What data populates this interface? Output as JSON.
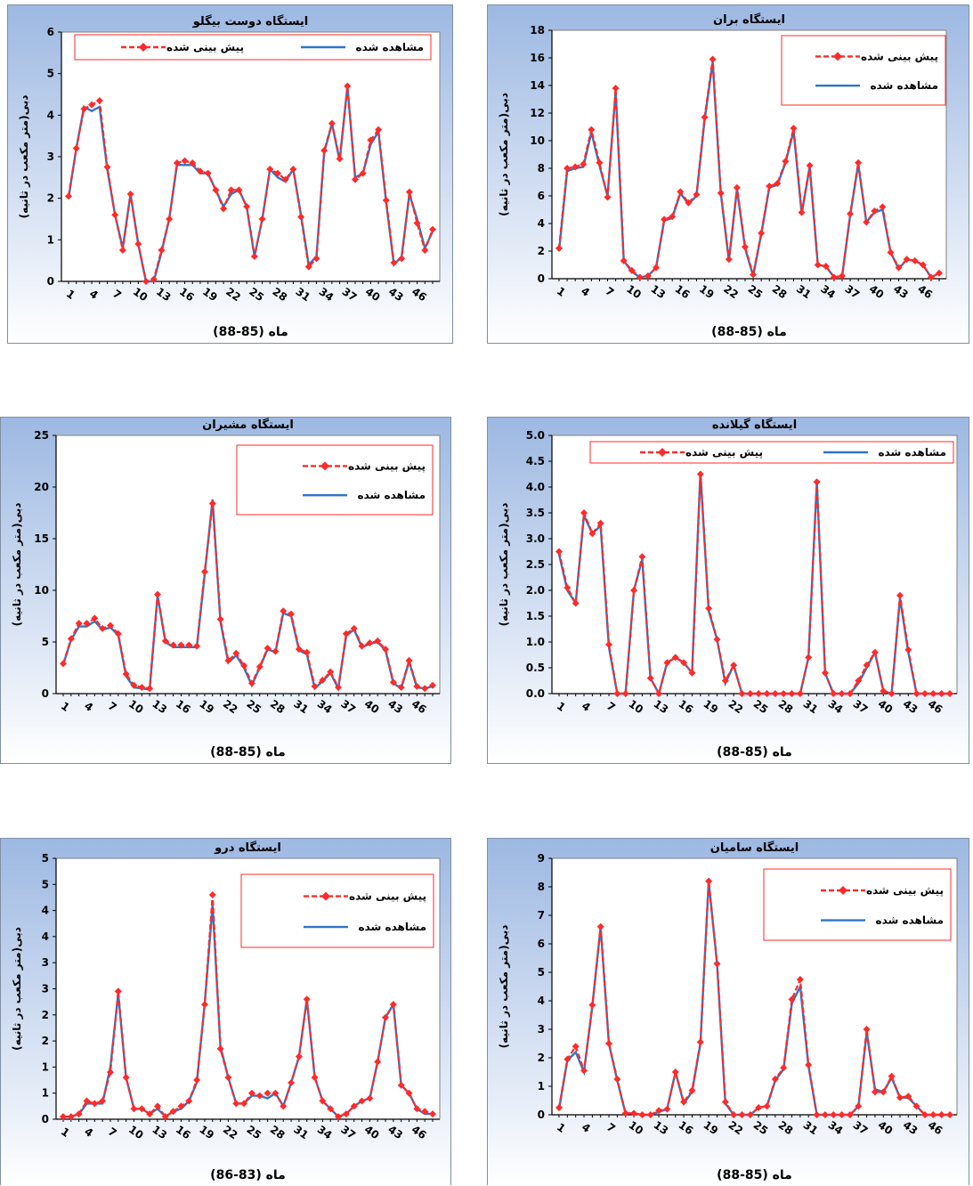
{
  "chart_data": [
    {
      "type": "line",
      "title": "ایستگاه دوست بیگلو",
      "xlabel": "ماه (85-88)",
      "ylabel": "دبی(متر مکعب در ثانیه)",
      "ylim": [
        0,
        6
      ],
      "ystep": 1,
      "ydecimals": 0,
      "xticks": [
        1,
        4,
        7,
        10,
        13,
        16,
        19,
        22,
        25,
        28,
        31,
        34,
        37,
        40,
        43,
        46
      ],
      "legend": "top-horizontal",
      "legend_items": [
        "مشاهده شده",
        "پیش بینی شده"
      ],
      "series": [
        {
          "name": "مشاهده شده",
          "color": "#2e75c9",
          "values": [
            2.0,
            3.2,
            4.2,
            4.1,
            4.2,
            2.7,
            1.6,
            0.8,
            2.1,
            0.9,
            0.0,
            0.0,
            0.7,
            1.5,
            2.8,
            2.8,
            2.8,
            2.6,
            2.6,
            2.2,
            1.8,
            2.1,
            2.2,
            1.8,
            0.6,
            1.5,
            2.7,
            2.5,
            2.4,
            2.7,
            1.6,
            0.4,
            0.6,
            3.1,
            3.8,
            2.9,
            4.7,
            2.5,
            2.6,
            3.3,
            3.6,
            1.9,
            0.4,
            0.6,
            2.1,
            1.5,
            0.8,
            1.2
          ]
        },
        {
          "name": "پیش بینی شده",
          "color": "#ff2a2a",
          "values": [
            2.05,
            3.2,
            4.15,
            4.25,
            4.35,
            2.75,
            1.6,
            0.75,
            2.1,
            0.9,
            0.0,
            0.05,
            0.75,
            1.5,
            2.85,
            2.9,
            2.85,
            2.65,
            2.6,
            2.2,
            1.75,
            2.2,
            2.2,
            1.8,
            0.6,
            1.5,
            2.7,
            2.6,
            2.45,
            2.7,
            1.55,
            0.35,
            0.55,
            3.15,
            3.8,
            2.95,
            4.7,
            2.45,
            2.6,
            3.4,
            3.65,
            1.95,
            0.45,
            0.55,
            2.15,
            1.4,
            0.75,
            1.25
          ]
        }
      ]
    },
    {
      "type": "line",
      "title": "ایستگاه بران",
      "xlabel": "ماه (85-88)",
      "ylabel": "دبی(متر مکعب در ثانیه)",
      "ylim": [
        0,
        18
      ],
      "ystep": 2,
      "ydecimals": 0,
      "xticks": [
        1,
        4,
        7,
        10,
        13,
        16,
        19,
        22,
        25,
        28,
        31,
        34,
        37,
        40,
        43,
        46
      ],
      "legend": "top-right",
      "legend_items": [
        "پیش بینی شده",
        "مشاهده شده"
      ],
      "series": [
        {
          "name": "مشاهده شده",
          "color": "#2e75c9",
          "values": [
            2.0,
            7.8,
            8.0,
            8.1,
            10.6,
            8.2,
            6.0,
            13.6,
            1.3,
            0.5,
            0.1,
            0.2,
            0.8,
            4.2,
            4.4,
            6.2,
            5.4,
            6.0,
            11.5,
            15.7,
            6.2,
            1.3,
            6.5,
            2.2,
            0.2,
            3.2,
            6.6,
            6.8,
            8.4,
            10.7,
            4.7,
            8.1,
            1.0,
            0.9,
            0.1,
            0.2,
            4.6,
            8.3,
            4.1,
            4.8,
            5.0,
            1.9,
            0.7,
            1.4,
            1.3,
            1.0,
            0.1,
            0.4
          ]
        },
        {
          "name": "پیش بینی شده",
          "color": "#ff2a2a",
          "values": [
            2.2,
            8.0,
            8.1,
            8.3,
            10.8,
            8.4,
            5.9,
            13.8,
            1.3,
            0.6,
            0.1,
            0.2,
            0.8,
            4.3,
            4.5,
            6.3,
            5.5,
            6.1,
            11.7,
            15.9,
            6.2,
            1.4,
            6.6,
            2.3,
            0.3,
            3.3,
            6.7,
            6.9,
            8.5,
            10.9,
            4.8,
            8.2,
            1.0,
            0.9,
            0.1,
            0.2,
            4.7,
            8.4,
            4.1,
            4.9,
            5.2,
            1.9,
            0.8,
            1.4,
            1.3,
            1.0,
            0.1,
            0.4
          ]
        }
      ]
    },
    {
      "type": "line",
      "title": "ایستگاه مشیران",
      "xlabel": "ماه (85-88)",
      "ylabel": "دبی(متر مکعب در ثانیه)",
      "ylim": [
        0,
        25
      ],
      "ystep": 5,
      "ydecimals": 0,
      "xticks": [
        1,
        4,
        7,
        10,
        13,
        16,
        19,
        22,
        25,
        28,
        31,
        34,
        37,
        40,
        43,
        46
      ],
      "legend": "top-right",
      "legend_items": [
        "پیش بینی شده",
        "مشاهده شده"
      ],
      "series": [
        {
          "name": "مشاهده شده",
          "color": "#2e75c9",
          "values": [
            2.8,
            5.2,
            6.5,
            6.5,
            7.0,
            6.2,
            6.4,
            5.7,
            1.7,
            0.6,
            0.5,
            0.4,
            9.5,
            5.0,
            4.5,
            4.5,
            4.5,
            4.5,
            11.5,
            18.8,
            7.0,
            3.0,
            3.7,
            2.5,
            0.8,
            2.5,
            4.3,
            4.0,
            7.8,
            7.5,
            4.2,
            3.8,
            0.5,
            1.2,
            2.0,
            0.5,
            5.6,
            6.2,
            4.5,
            4.8,
            5.0,
            4.2,
            1.0,
            0.5,
            3.1,
            0.6,
            0.5,
            0.7
          ]
        },
        {
          "name": "پیش بینی شده",
          "color": "#ff2a2a",
          "values": [
            2.9,
            5.3,
            6.8,
            6.8,
            7.3,
            6.3,
            6.6,
            5.8,
            1.9,
            0.8,
            0.6,
            0.5,
            9.6,
            5.1,
            4.7,
            4.7,
            4.7,
            4.6,
            11.8,
            18.4,
            7.2,
            3.2,
            3.9,
            2.7,
            1.0,
            2.6,
            4.4,
            4.1,
            8.0,
            7.7,
            4.3,
            4.0,
            0.7,
            1.3,
            2.1,
            0.6,
            5.8,
            6.3,
            4.6,
            4.9,
            5.1,
            4.3,
            1.1,
            0.6,
            3.2,
            0.7,
            0.5,
            0.8
          ]
        }
      ]
    },
    {
      "type": "line",
      "title": "ایستگاه گیلانده",
      "xlabel": "ماه (85-88)",
      "ylabel": "دبی(متر مکعب در ثانیه)",
      "ylim": [
        0,
        5
      ],
      "ystep": 0.5,
      "ydecimals": 1,
      "xticks": [
        1,
        4,
        7,
        10,
        13,
        16,
        19,
        22,
        25,
        28,
        31,
        34,
        37,
        40,
        43,
        46
      ],
      "legend": "top-horizontal",
      "legend_items": [
        "مشاهده شده",
        "پیش بینی شده"
      ],
      "series": [
        {
          "name": "مشاهده شده",
          "color": "#2e75c9",
          "values": [
            2.7,
            2.0,
            1.75,
            3.45,
            3.1,
            3.25,
            0.9,
            0.0,
            0.0,
            2.0,
            2.6,
            0.3,
            0.0,
            0.6,
            0.7,
            0.6,
            0.4,
            4.3,
            1.6,
            1.05,
            0.2,
            0.55,
            0.0,
            0.0,
            0.0,
            0.0,
            0.0,
            0.0,
            0.0,
            0.0,
            0.7,
            4.1,
            0.4,
            0.0,
            0.0,
            0.0,
            0.2,
            0.5,
            0.8,
            0.05,
            0.0,
            1.85,
            0.8,
            0.0,
            0.0,
            0.0,
            0.0,
            0.0
          ]
        },
        {
          "name": "پیش بینی شده",
          "color": "#ff2a2a",
          "values": [
            2.75,
            2.05,
            1.75,
            3.5,
            3.1,
            3.3,
            0.95,
            0.0,
            0.0,
            2.0,
            2.65,
            0.3,
            0.0,
            0.6,
            0.7,
            0.6,
            0.4,
            4.25,
            1.65,
            1.05,
            0.25,
            0.55,
            0.0,
            0.0,
            0.0,
            0.0,
            0.0,
            0.0,
            0.0,
            0.0,
            0.7,
            4.1,
            0.4,
            0.0,
            0.0,
            0.0,
            0.25,
            0.55,
            0.8,
            0.05,
            0.0,
            1.9,
            0.85,
            0.0,
            0.0,
            0.0,
            0.0,
            0.0
          ]
        }
      ]
    },
    {
      "type": "line",
      "title": "ایستگاه درو",
      "xlabel": "ماه (83-86)",
      "ylabel": "دبی(متر مکعب در ثانیه)",
      "ylim": [
        0,
        5
      ],
      "ystep": 0.5,
      "ydecimals": 0,
      "ytick_labels": [
        "0",
        "1",
        "1",
        "2",
        "2",
        "3",
        "3",
        "4",
        "4",
        "5",
        "5"
      ],
      "xticks": [
        1,
        4,
        7,
        10,
        13,
        16,
        19,
        22,
        25,
        28,
        31,
        34,
        37,
        40,
        43,
        46
      ],
      "legend": "top-right",
      "legend_items": [
        "پیش بینی شده",
        "مشاهده شده"
      ],
      "series": [
        {
          "name": "مشاهده شده",
          "color": "#2e75c9",
          "values": [
            0.05,
            0.05,
            0.1,
            0.3,
            0.3,
            0.3,
            1.0,
            2.4,
            0.8,
            0.2,
            0.2,
            0.1,
            0.2,
            0.05,
            0.15,
            0.2,
            0.35,
            0.7,
            2.2,
            4.1,
            1.4,
            0.8,
            0.3,
            0.3,
            0.45,
            0.45,
            0.4,
            0.5,
            0.25,
            0.7,
            1.2,
            2.3,
            0.8,
            0.35,
            0.2,
            0.05,
            0.1,
            0.25,
            0.35,
            0.4,
            1.1,
            1.95,
            2.2,
            0.65,
            0.5,
            0.2,
            0.1,
            0.1
          ]
        },
        {
          "name": "پیش بینی شده",
          "color": "#ff2a2a",
          "values": [
            0.05,
            0.05,
            0.1,
            0.35,
            0.3,
            0.35,
            0.9,
            2.45,
            0.8,
            0.2,
            0.2,
            0.1,
            0.25,
            0.05,
            0.15,
            0.25,
            0.35,
            0.75,
            2.2,
            4.3,
            1.35,
            0.8,
            0.3,
            0.3,
            0.5,
            0.45,
            0.5,
            0.5,
            0.25,
            0.7,
            1.2,
            2.3,
            0.8,
            0.35,
            0.2,
            0.05,
            0.1,
            0.25,
            0.35,
            0.4,
            1.1,
            1.95,
            2.2,
            0.65,
            0.5,
            0.2,
            0.15,
            0.1
          ]
        }
      ]
    },
    {
      "type": "line",
      "title": "ایستگاه سامیان",
      "xlabel": "ماه (85-88)",
      "ylabel": "دبی(متر مکعب در ثانیه)",
      "ylim": [
        0,
        9
      ],
      "ystep": 1,
      "ydecimals": 0,
      "xticks": [
        1,
        4,
        7,
        10,
        13,
        16,
        19,
        22,
        25,
        28,
        31,
        34,
        37,
        40,
        43,
        46
      ],
      "legend": "top-right",
      "legend_items": [
        "پیش بینی شده",
        "مشاهده شده"
      ],
      "series": [
        {
          "name": "مشاهده شده",
          "color": "#2e75c9",
          "values": [
            0.2,
            1.9,
            2.2,
            1.5,
            3.8,
            6.6,
            2.5,
            1.2,
            0.05,
            0.05,
            0.0,
            0.0,
            0.1,
            0.2,
            1.5,
            0.4,
            0.8,
            2.5,
            8.2,
            5.3,
            0.4,
            0.0,
            0.0,
            0.0,
            0.25,
            0.3,
            1.2,
            1.6,
            3.9,
            4.5,
            1.7,
            0.0,
            0.0,
            0.0,
            0.0,
            0.0,
            0.3,
            2.9,
            0.9,
            0.8,
            1.3,
            0.6,
            0.6,
            0.3,
            0.0,
            0.0,
            0.0,
            0.0
          ]
        },
        {
          "name": "پیش بینی شده",
          "color": "#ff2a2a",
          "values": [
            0.25,
            1.95,
            2.4,
            1.55,
            3.85,
            6.6,
            2.5,
            1.25,
            0.05,
            0.05,
            0.0,
            0.0,
            0.15,
            0.2,
            1.5,
            0.45,
            0.85,
            2.55,
            8.2,
            5.3,
            0.45,
            0.0,
            0.0,
            0.0,
            0.25,
            0.3,
            1.25,
            1.65,
            4.05,
            4.75,
            1.75,
            0.0,
            0.0,
            0.0,
            0.0,
            0.0,
            0.3,
            3.0,
            0.8,
            0.8,
            1.35,
            0.6,
            0.65,
            0.3,
            0.0,
            0.0,
            0.0,
            0.0
          ]
        }
      ]
    }
  ]
}
